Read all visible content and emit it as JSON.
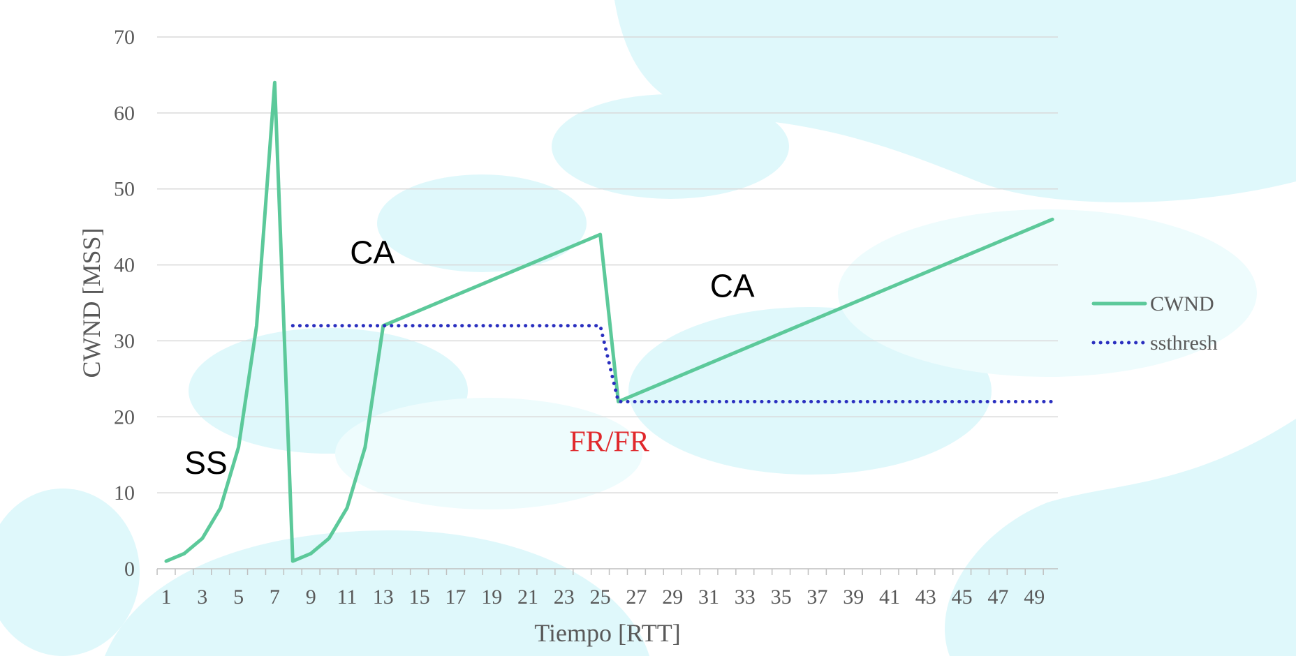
{
  "chart_data": {
    "type": "line",
    "xlabel": "Tiempo [RTT]",
    "ylabel": "CWND [MSS]",
    "ylim": [
      0,
      70
    ],
    "yticks": [
      0,
      10,
      20,
      30,
      40,
      50,
      60,
      70
    ],
    "xticks": [
      1,
      3,
      5,
      7,
      9,
      11,
      13,
      15,
      17,
      19,
      21,
      23,
      25,
      27,
      29,
      31,
      33,
      35,
      37,
      39,
      41,
      43,
      45,
      47,
      49
    ],
    "x_range": [
      1,
      50
    ],
    "grid": "horizontal",
    "legend": "right",
    "series": [
      {
        "name": "CWND",
        "color": "#5cc99a",
        "style": "solid",
        "x": [
          1,
          2,
          3,
          4,
          5,
          6,
          7,
          8,
          9,
          10,
          11,
          12,
          13,
          25,
          26,
          50
        ],
        "y": [
          1,
          2,
          4,
          8,
          16,
          32,
          64,
          1,
          2,
          4,
          8,
          16,
          32,
          44,
          22,
          46
        ]
      },
      {
        "name": "ssthresh",
        "color": "#2a2fbf",
        "style": "dotted",
        "x": [
          8,
          25,
          26,
          50
        ],
        "y": [
          32,
          32,
          22,
          22
        ]
      }
    ],
    "annotations": [
      {
        "id": "ss",
        "text": "SS",
        "x": 3.2,
        "y": 12.5,
        "style": "sans"
      },
      {
        "id": "ca1",
        "text": "CA",
        "x": 12.4,
        "y": 40.2,
        "style": "sans"
      },
      {
        "id": "ca2",
        "text": "CA",
        "x": 32.3,
        "y": 35.8,
        "style": "sans"
      },
      {
        "id": "frfr",
        "text": "FR/FR",
        "x": 25.5,
        "y": 15.5,
        "style": "red"
      }
    ]
  }
}
